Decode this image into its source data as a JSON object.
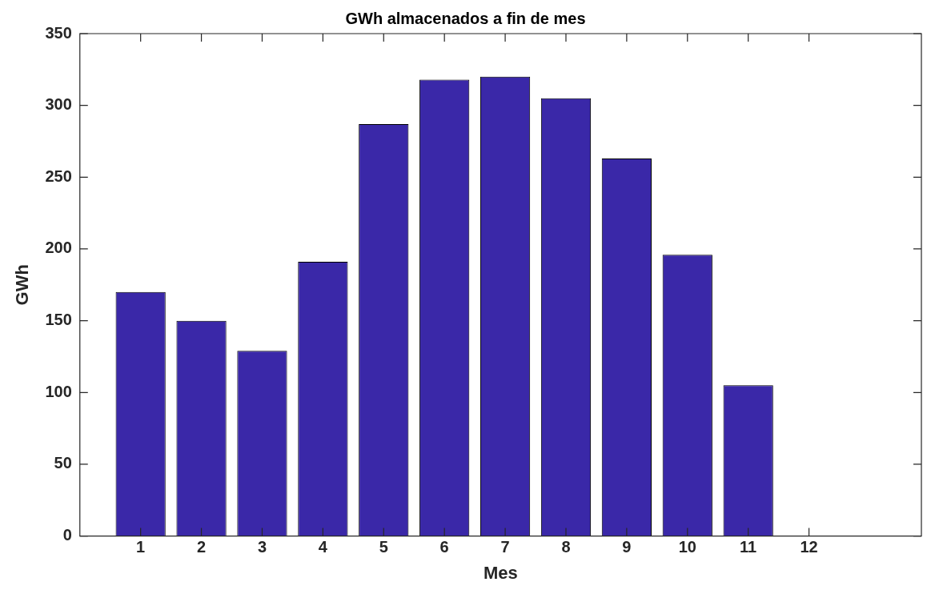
{
  "chart_data": {
    "type": "bar",
    "title": "GWh almacenados a fin de mes",
    "xlabel": "Mes",
    "ylabel": "GWh",
    "x": [
      1,
      2,
      3,
      4,
      5,
      6,
      7,
      8,
      9,
      10,
      11,
      12
    ],
    "values": [
      170,
      150,
      129,
      191,
      287,
      318,
      320,
      305,
      263,
      196,
      105,
      0
    ],
    "color": "#3a28a8",
    "xlim": [
      0,
      13.85
    ],
    "xticks": [
      1,
      2,
      3,
      4,
      5,
      6,
      7,
      8,
      9,
      10,
      11,
      12
    ],
    "ylim": [
      0,
      350
    ],
    "yticks": [
      0,
      50,
      100,
      150,
      200,
      250,
      300,
      350
    ],
    "grid": false,
    "legend": false
  }
}
